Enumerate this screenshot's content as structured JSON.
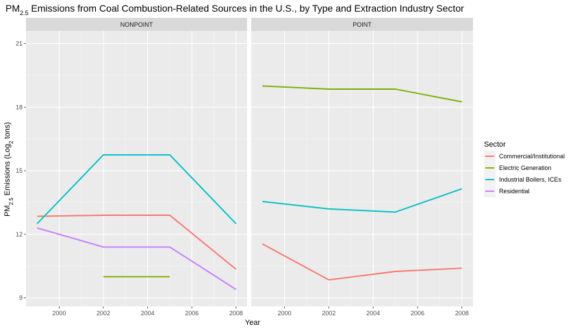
{
  "chart_data": {
    "type": "line",
    "title": {
      "prefix": "PM",
      "sub": "2.5",
      "rest": " Emissions from Coal Combustion-Related Sources in the U.S., by Type and Extraction Industry Sector"
    },
    "xlabel": "Year",
    "ylabel": {
      "prefix": "PM",
      "sub": "2.5",
      "mid": " Emissions (Log",
      "sub2": "2",
      "rest": " tons)"
    },
    "xlim": [
      1998.5,
      2008.5
    ],
    "ylim": [
      8.6,
      21.6
    ],
    "x_ticks": [
      2000,
      2002,
      2004,
      2006,
      2008
    ],
    "y_ticks": [
      9,
      12,
      15,
      18,
      21
    ],
    "legend_title": "Sector",
    "colors": {
      "Commercial/Institutional": "#F8766D",
      "Electric Generation": "#7CAE00",
      "Industrial Boilers, ICEs": "#00BFC4",
      "Residential": "#C77CFF"
    },
    "series_names": [
      "Commercial/Institutional",
      "Electric Generation",
      "Industrial Boilers, ICEs",
      "Residential"
    ],
    "panels": [
      {
        "name": "NONPOINT",
        "series": [
          {
            "name": "Commercial/Institutional",
            "x": [
              1999,
              2002,
              2005,
              2008
            ],
            "y": [
              12.85,
              12.9,
              12.9,
              10.35
            ]
          },
          {
            "name": "Electric Generation",
            "x": [
              2002,
              2005
            ],
            "y": [
              10.0,
              10.0
            ]
          },
          {
            "name": "Industrial Boilers, ICEs",
            "x": [
              1999,
              2002,
              2005,
              2008
            ],
            "y": [
              12.5,
              15.75,
              15.75,
              12.5
            ]
          },
          {
            "name": "Residential",
            "x": [
              1999,
              2002,
              2005,
              2008
            ],
            "y": [
              12.3,
              11.4,
              11.4,
              9.4
            ]
          }
        ]
      },
      {
        "name": "POINT",
        "series": [
          {
            "name": "Commercial/Institutional",
            "x": [
              1999,
              2002,
              2005,
              2008
            ],
            "y": [
              11.55,
              9.85,
              10.25,
              10.4
            ]
          },
          {
            "name": "Electric Generation",
            "x": [
              1999,
              2002,
              2005,
              2008
            ],
            "y": [
              19.0,
              18.85,
              18.85,
              18.25
            ]
          },
          {
            "name": "Industrial Boilers, ICEs",
            "x": [
              1999,
              2002,
              2005,
              2008
            ],
            "y": [
              13.55,
              13.2,
              13.05,
              14.15
            ]
          },
          {
            "name": "Residential",
            "x": [],
            "y": []
          }
        ]
      }
    ]
  }
}
